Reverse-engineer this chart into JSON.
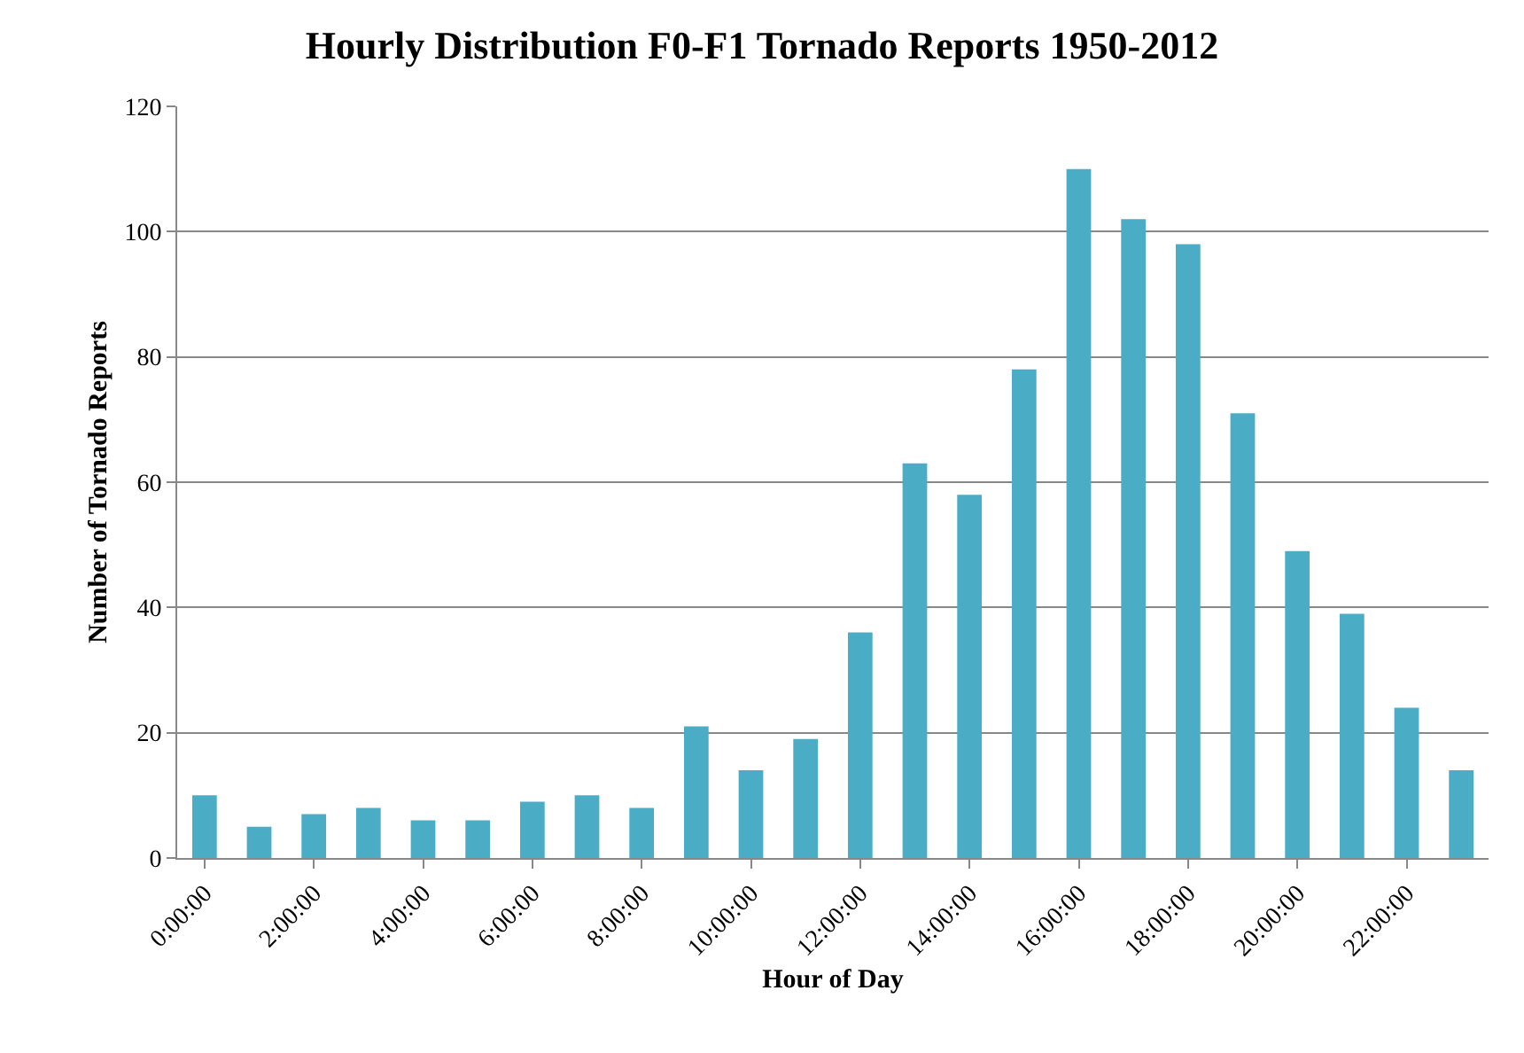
{
  "chart_data": {
    "type": "bar",
    "title": "Hourly Distribution F0-F1 Tornado Reports 1950-2012",
    "xlabel": "Hour of Day",
    "ylabel": "Number of Tornado Reports",
    "categories": [
      "0:00:00",
      null,
      "2:00:00",
      null,
      "4:00:00",
      null,
      "6:00:00",
      null,
      "8:00:00",
      null,
      "10:00:00",
      null,
      "12:00:00",
      null,
      "14:00:00",
      null,
      "16:00:00",
      null,
      "18:00:00",
      null,
      "20:00:00",
      null,
      "22:00:00",
      null
    ],
    "values": [
      10,
      5,
      7,
      8,
      6,
      6,
      9,
      10,
      8,
      21,
      14,
      19,
      36,
      63,
      58,
      78,
      110,
      102,
      98,
      71,
      49,
      39,
      24,
      14
    ],
    "color": "#4bacc6",
    "ylim": [
      0,
      120
    ],
    "yticks": [
      0,
      20,
      40,
      60,
      80,
      100,
      120
    ],
    "grid": "y"
  }
}
